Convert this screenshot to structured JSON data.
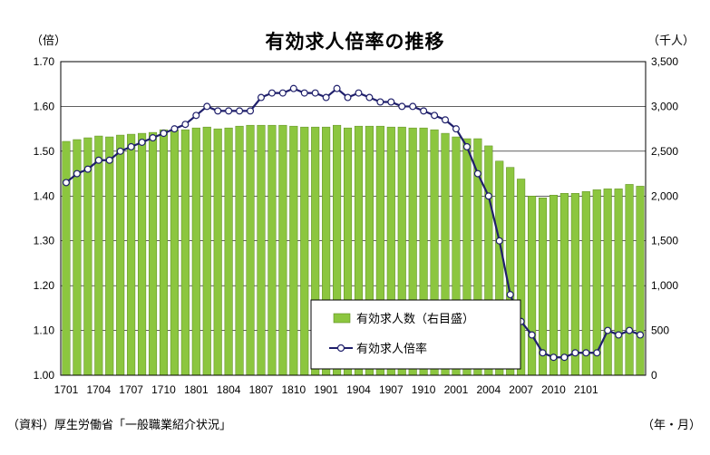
{
  "chart_data": {
    "type": "bar+line",
    "title": "有効求人倍率の推移",
    "ylabel_left": "（倍）",
    "ylabel_right": "（千人）",
    "xlabel": "（年・月）",
    "source": "（資料）厚生労働省「一般職業紹介状況」",
    "ylim_left": [
      1.0,
      1.7
    ],
    "ylim_right": [
      0,
      3500
    ],
    "yticks_left": [
      "1.70",
      "1.60",
      "1.50",
      "1.40",
      "1.30",
      "1.20",
      "1.10",
      "1.00"
    ],
    "yticks_right": [
      "3,500",
      "3,000",
      "2,500",
      "2,000",
      "1,500",
      "1,000",
      "500",
      "0"
    ],
    "x_tick_labels": [
      "1701",
      "1704",
      "1707",
      "1710",
      "1801",
      "1804",
      "1807",
      "1810",
      "1901",
      "1904",
      "1907",
      "1910",
      "2001",
      "2004",
      "2007",
      "2010",
      "2101"
    ],
    "grid": true,
    "legend_position": "bottom-right",
    "series": [
      {
        "name": "有効求人数（右目盛）",
        "type": "bar",
        "axis": "right",
        "color": "#8cc63f",
        "values": [
          2610,
          2630,
          2650,
          2670,
          2660,
          2680,
          2690,
          2700,
          2710,
          2740,
          2740,
          2740,
          2760,
          2770,
          2750,
          2760,
          2780,
          2790,
          2790,
          2790,
          2790,
          2780,
          2770,
          2770,
          2770,
          2790,
          2760,
          2780,
          2780,
          2780,
          2770,
          2770,
          2760,
          2760,
          2740,
          2700,
          2660,
          2640,
          2640,
          2560,
          2390,
          2320,
          2190,
          2000,
          1980,
          2010,
          2030,
          2030,
          2050,
          2070,
          2080,
          2080,
          2130,
          2110
        ]
      },
      {
        "name": "有効求人倍率",
        "type": "line",
        "axis": "left",
        "color": "#1f1f6b",
        "values": [
          1.43,
          1.45,
          1.46,
          1.48,
          1.48,
          1.5,
          1.51,
          1.52,
          1.53,
          1.54,
          1.55,
          1.56,
          1.58,
          1.6,
          1.59,
          1.59,
          1.59,
          1.59,
          1.62,
          1.63,
          1.63,
          1.64,
          1.63,
          1.63,
          1.62,
          1.64,
          1.62,
          1.63,
          1.62,
          1.61,
          1.61,
          1.6,
          1.6,
          1.59,
          1.58,
          1.57,
          1.55,
          1.51,
          1.45,
          1.4,
          1.3,
          1.18,
          1.12,
          1.09,
          1.05,
          1.04,
          1.04,
          1.05,
          1.05,
          1.05,
          1.1,
          1.09,
          1.1,
          1.09
        ]
      }
    ]
  },
  "legend": {
    "bar_label": "有効求人数（右目盛）",
    "line_label": "有効求人倍率"
  },
  "colors": {
    "bar_fill": "#8cc63f",
    "bar_stroke": "#5b8a1e",
    "line": "#1f1f6b",
    "marker_fill": "#ffffff"
  }
}
